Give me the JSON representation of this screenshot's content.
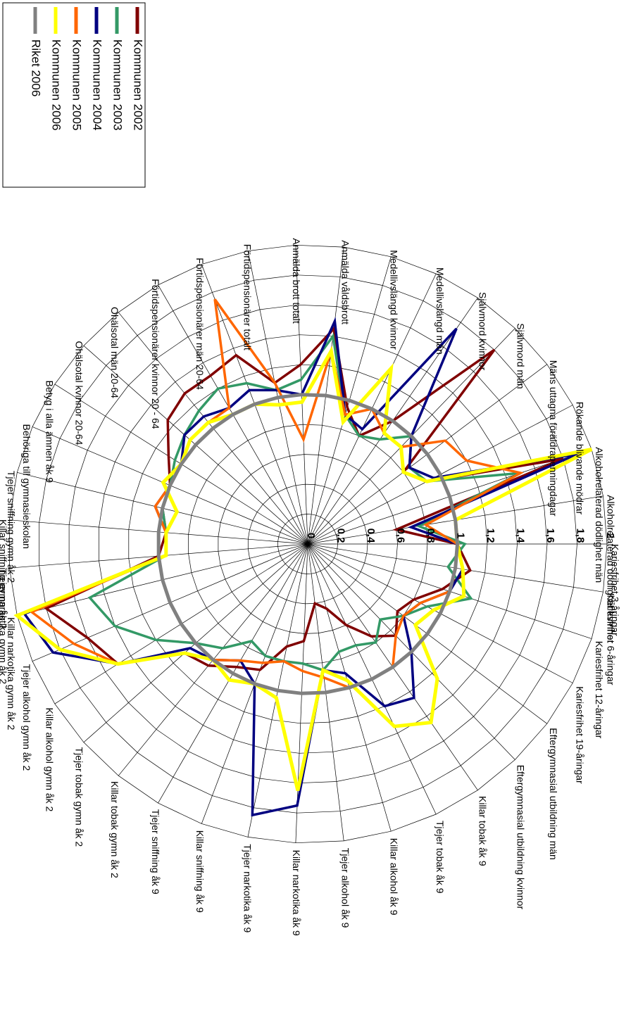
{
  "chart_data": {
    "type": "radar",
    "title": "",
    "categories": [
      "Kariesfrihet 3-åringar",
      "Kariesfrihet 6-åringar",
      "Kariesfrihet 12-åringar",
      "Kariesfrihet 19-åringar",
      "Eftergymnasial utbildning män",
      "Eftergymnasial utbildning kvinnor",
      "Killar tobak åk 9",
      "Tjejer tobak åk 9",
      "Killar alkohol åk 9",
      "Tjejer alkohol åk 9",
      "Killar narkotika åk 9",
      "Tjejer narkotika åk 9",
      "Killar sniffning åk 9",
      "Tjejer sniffning åk 9",
      "Killar tobak gymn åk 2",
      "Tjejer tobak gymn åk 2",
      "Killar alkohol gymn åk 2",
      "Tjejer alkohol gymn åk 2",
      "Killar narkotika gymn åk 2",
      "Tjejer narkotika gymn åk 2",
      "Killar sniffning gymn åk 2",
      "Tjejer sniffning gymn åk 2",
      "Behöriga till gymnasieskolan",
      "Betyg i alla ämnen åk 9",
      "Ohälsotal kvinnor 20-64",
      "Ohälsotal män 20-64",
      "Förtidspensionärer kvinnor 20 - 64",
      "Förtidspensionärer män 20-64",
      "Förtidspensionärer totalt",
      "Anmälda brott totalt",
      "Anmälda våldsbrott",
      "Medellivslängd kvinnor",
      "Medellivslängd män",
      "Självmord kvinnor",
      "Självmord män",
      "Mäns uttagna föräldrapenningdagar",
      "Rökande blivande mödrar",
      "Alkoholrelaterad dödlighet män",
      "Alkoholrelaterad dödlighet kvinnor"
    ],
    "r_ticks": [
      "0",
      "0,2",
      "0,4",
      "0,6",
      "0,8",
      "1",
      "1,2",
      "1,4",
      "1,6",
      "1,8",
      "2"
    ],
    "r_range": [
      0,
      2
    ],
    "legend_position": "top-left",
    "series": [
      {
        "name": "Kommunen 2002",
        "color": "#800000",
        "values": [
          1.0,
          1.1,
          0.95,
          0.8,
          0.75,
          0.85,
          0.75,
          0.6,
          0.45,
          0.4,
          0.65,
          0.7,
          0.9,
          0.95,
          1.05,
          1.1,
          1.5,
          1.6,
          1.8,
          1.0,
          0.95,
          1.0,
          1.0,
          1.1,
          1.25,
          1.3,
          1.3,
          1.35,
          1.1,
          1.2,
          1.45,
          0.95,
          0.8,
          1.0,
          1.8,
          0.8,
          0.9,
          1.8,
          0.6
        ]
      },
      {
        "name": "Kommunen 2003",
        "color": "#339966",
        "values": [
          1.05,
          0.95,
          1.15,
          0.9,
          0.8,
          0.7,
          0.8,
          0.75,
          0.75,
          0.85,
          0.8,
          0.8,
          0.8,
          0.75,
          0.9,
          1.0,
          1.2,
          1.4,
          1.5,
          0.95,
          0.95,
          1.0,
          1.0,
          1.05,
          1.1,
          1.15,
          1.2,
          1.15,
          1.05,
          1.1,
          1.4,
          0.9,
          0.8,
          0.85,
          1.0,
          0.85,
          0.9,
          1.5,
          0.75
        ]
      },
      {
        "name": "Kommunen 2004",
        "color": "#000080",
        "values": [
          1.0,
          1.05,
          1.0,
          0.85,
          0.8,
          1.0,
          1.25,
          1.2,
          0.9,
          0.85,
          1.75,
          1.85,
          1.0,
          0.9,
          1.0,
          1.05,
          1.5,
          1.85,
          1.95,
          0.95,
          0.95,
          1.05,
          1.0,
          1.0,
          1.1,
          1.1,
          1.05,
          1.1,
          1.05,
          1.0,
          1.5,
          0.9,
          0.85,
          1.75,
          1.0,
          0.85,
          0.95,
          1.9,
          0.7
        ]
      },
      {
        "name": "Kommunen 2005",
        "color": "#FF6600",
        "values": [
          1.0,
          1.0,
          1.0,
          0.85,
          0.8,
          0.85,
          1.0,
          1.0,
          1.0,
          0.9,
          0.85,
          0.8,
          0.85,
          0.9,
          1.0,
          1.1,
          1.5,
          1.7,
          1.9,
          0.95,
          0.95,
          1.05,
          1.0,
          1.0,
          1.05,
          1.05,
          1.05,
          1.75,
          1.1,
          0.7,
          1.3,
          0.9,
          1.0,
          0.9,
          0.9,
          1.15,
          1.2,
          1.5,
          0.8
        ]
      },
      {
        "name": "Kommunen 2006",
        "color": "#FFFF00",
        "values": [
          1.0,
          1.05,
          1.1,
          0.95,
          0.9,
          1.25,
          1.45,
          1.35,
          0.95,
          0.85,
          1.65,
          1.05,
          1.0,
          1.05,
          1.0,
          1.1,
          1.5,
          1.8,
          2.0,
          0.95,
          0.95,
          0.9,
          1.05,
          1.0,
          1.05,
          1.05,
          1.0,
          1.0,
          0.95,
          0.95,
          1.3,
          0.85,
          1.3,
          0.9,
          0.9,
          0.8,
          0.9,
          2.0,
          1.0
        ]
      },
      {
        "name": "Riket 2006",
        "color": "#808080",
        "values": [
          1.0,
          1.0,
          1.0,
          1.0,
          1.0,
          1.0,
          1.0,
          1.0,
          1.0,
          1.0,
          1.0,
          1.0,
          1.0,
          1.0,
          1.0,
          1.0,
          1.0,
          1.0,
          1.0,
          1.0,
          1.0,
          1.0,
          1.0,
          1.0,
          1.0,
          1.0,
          1.0,
          1.0,
          1.0,
          1.0,
          1.0,
          1.0,
          1.0,
          1.0,
          1.0,
          1.0,
          1.0,
          1.0,
          1.0
        ]
      }
    ]
  }
}
